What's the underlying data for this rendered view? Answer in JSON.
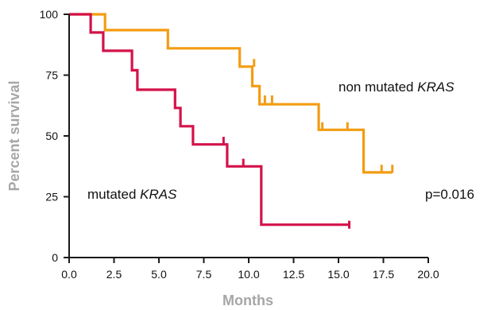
{
  "chart_data": {
    "type": "line",
    "subtype": "kaplan-meier step",
    "xlabel": "Months",
    "ylabel": "Percent survival",
    "xlim": [
      0,
      20
    ],
    "ylim": [
      0,
      100
    ],
    "x_ticks": [
      "0.0",
      "2.5",
      "5.0",
      "7.5",
      "10.0",
      "12.5",
      "15.0",
      "17.5",
      "20.0"
    ],
    "y_ticks": [
      "0",
      "25",
      "50",
      "75",
      "100"
    ],
    "grid": false,
    "series": [
      {
        "color": "#f39c12",
        "steps": [
          [
            0,
            100
          ],
          [
            2.0,
            100
          ],
          [
            2.0,
            93.5
          ],
          [
            5.5,
            93.5
          ],
          [
            5.5,
            86
          ],
          [
            9.5,
            86
          ],
          [
            9.5,
            78.5
          ],
          [
            10.2,
            78.5
          ],
          [
            10.2,
            70.5
          ],
          [
            10.6,
            70.5
          ],
          [
            10.6,
            63
          ],
          [
            13.9,
            63
          ],
          [
            13.9,
            52.5
          ],
          [
            16.4,
            52.5
          ],
          [
            16.4,
            35
          ],
          [
            18.0,
            35
          ]
        ],
        "censor_marks": [
          [
            10.3,
            80
          ],
          [
            10.9,
            65
          ],
          [
            11.3,
            65
          ],
          [
            14.1,
            54
          ],
          [
            15.5,
            54
          ],
          [
            17.4,
            36.5
          ],
          [
            18.0,
            36.5
          ]
        ]
      },
      {
        "color": "#d4124a",
        "steps": [
          [
            0,
            100
          ],
          [
            1.2,
            100
          ],
          [
            1.2,
            92.5
          ],
          [
            1.9,
            92.5
          ],
          [
            1.9,
            85
          ],
          [
            3.5,
            85
          ],
          [
            3.5,
            77
          ],
          [
            3.8,
            77
          ],
          [
            3.8,
            69
          ],
          [
            5.9,
            69
          ],
          [
            5.9,
            61.5
          ],
          [
            6.2,
            61.5
          ],
          [
            6.2,
            54
          ],
          [
            6.9,
            54
          ],
          [
            6.9,
            46.5
          ],
          [
            8.8,
            46.5
          ],
          [
            8.8,
            37.5
          ],
          [
            10.7,
            37.5
          ],
          [
            10.7,
            13.5
          ],
          [
            15.6,
            13.5
          ]
        ],
        "censor_marks": [
          [
            8.6,
            48
          ],
          [
            9.7,
            39
          ],
          [
            15.6,
            13.5
          ]
        ]
      }
    ],
    "annotations": [
      {
        "text_plain": "non mutated ",
        "text_italic": "KRAS"
      },
      {
        "text_plain": "mutated ",
        "text_italic": "KRAS"
      },
      {
        "text_plain": "p=0.016",
        "text_italic": ""
      }
    ]
  }
}
